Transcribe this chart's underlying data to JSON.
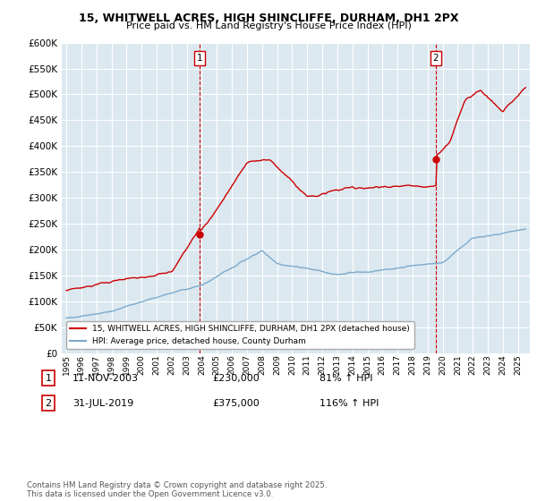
{
  "title": "15, WHITWELL ACRES, HIGH SHINCLIFFE, DURHAM, DH1 2PX",
  "subtitle": "Price paid vs. HM Land Registry's House Price Index (HPI)",
  "legend_line1": "15, WHITWELL ACRES, HIGH SHINCLIFFE, DURHAM, DH1 2PX (detached house)",
  "legend_line2": "HPI: Average price, detached house, County Durham",
  "footnote": "Contains HM Land Registry data © Crown copyright and database right 2025.\nThis data is licensed under the Open Government Licence v3.0.",
  "purchase1_date": "11-NOV-2003",
  "purchase1_price": 230000,
  "purchase1_label": "81% ↑ HPI",
  "purchase2_date": "31-JUL-2019",
  "purchase2_price": 375000,
  "purchase2_label": "116% ↑ HPI",
  "red_color": "#cc0000",
  "blue_color": "#7aaacc",
  "bg_plot": "#dce8f0",
  "grid_color": "#ffffff",
  "ylim": [
    0,
    600000
  ],
  "yticks": [
    0,
    50000,
    100000,
    150000,
    200000,
    250000,
    300000,
    350000,
    400000,
    450000,
    500000,
    550000,
    600000
  ]
}
